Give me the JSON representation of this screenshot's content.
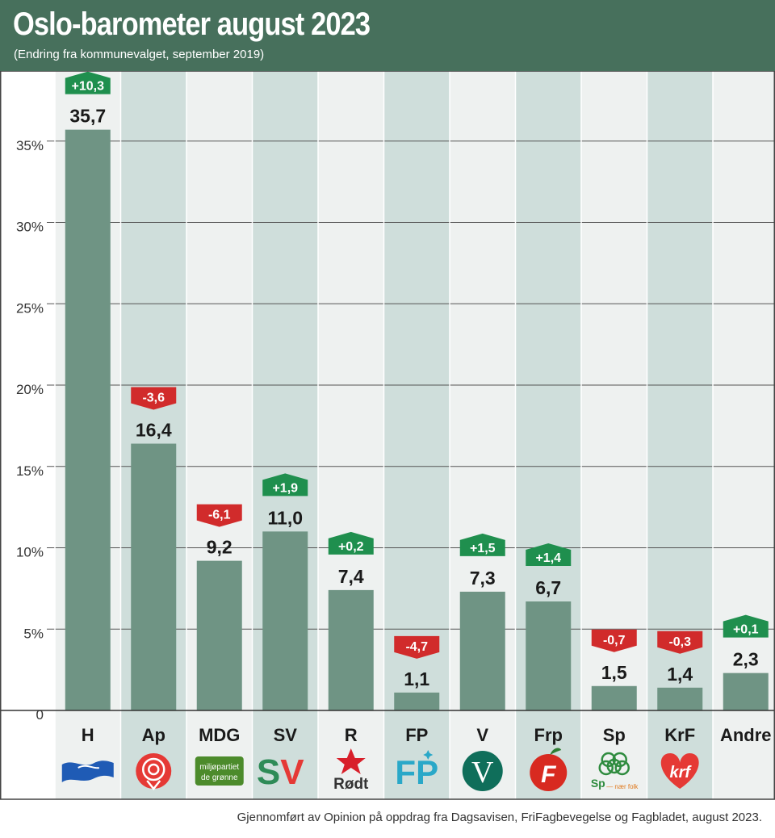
{
  "header": {
    "title": "Oslo-barometer august 2023",
    "subtitle": "(Endring fra kommunevalget, september 2019)"
  },
  "footer": {
    "text": "Gjennomført av Opinion på oppdrag fra Dagsavisen, FriFagbevegelse og Fagbladet, august 2023."
  },
  "colors": {
    "header_bg": "#47705c",
    "bar": "#6f9484",
    "column_light": "#eef1f0",
    "column_dark": "#cfdedb",
    "positive": "#1f8f4e",
    "negative": "#d12b2b"
  },
  "chart_data": {
    "type": "bar",
    "title": "Oslo-barometer august 2023",
    "subtitle": "(Endring fra kommunevalget, september 2019)",
    "xlabel": "",
    "ylabel": "",
    "ylim": [
      0,
      37.5
    ],
    "yticks": [
      0,
      5,
      10,
      15,
      20,
      25,
      30,
      35
    ],
    "ytick_labels": [
      "0",
      "5%",
      "10%",
      "15%",
      "20%",
      "25%",
      "30%",
      "35%"
    ],
    "grid": true,
    "categories": [
      "H",
      "Ap",
      "MDG",
      "SV",
      "R",
      "FP",
      "V",
      "Frp",
      "Sp",
      "KrF",
      "Andre"
    ],
    "values": [
      35.7,
      16.4,
      9.2,
      11.0,
      7.4,
      1.1,
      7.3,
      6.7,
      1.5,
      1.4,
      2.3
    ],
    "value_labels": [
      "35,7",
      "16,4",
      "9,2",
      "11,0",
      "7,4",
      "1,1",
      "7,3",
      "6,7",
      "1,5",
      "1,4",
      "2,3"
    ],
    "changes": [
      10.3,
      -3.6,
      -6.1,
      1.9,
      0.2,
      -4.7,
      1.5,
      1.4,
      -0.7,
      -0.3,
      0.1
    ],
    "change_labels": [
      "+10,3",
      "-3,6",
      "-6,1",
      "+1,9",
      "+0,2",
      "-4,7",
      "+1,5",
      "+1,4",
      "-0,7",
      "-0,3",
      "+0,1"
    ],
    "logo_icons": [
      "hoyre-flag-icon",
      "ap-rose-icon",
      "mdg-leaf-icon",
      "sv-logo-icon",
      "rodt-star-icon",
      "fp-logo-icon",
      "venstre-v-icon",
      "frp-apple-icon",
      "sp-clover-icon",
      "krf-heart-icon",
      ""
    ],
    "logo_texts": [
      "",
      "",
      "miljøpartiet de grønne",
      "SV",
      "Rødt",
      "FP",
      "V",
      "F",
      "Sp — nær folk",
      "krf",
      ""
    ]
  }
}
